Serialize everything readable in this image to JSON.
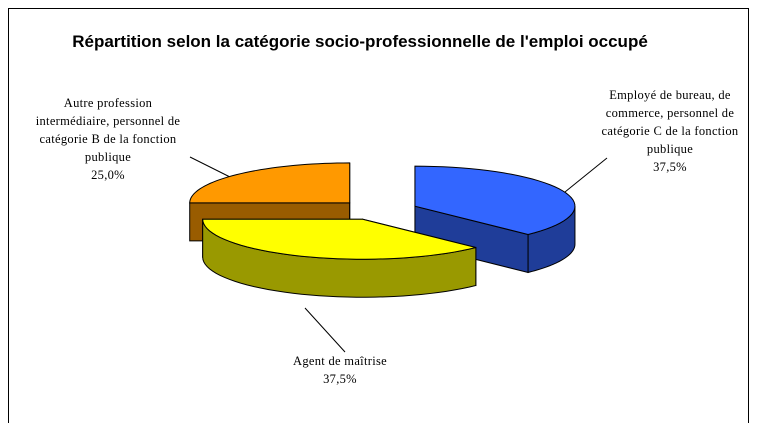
{
  "chart_data": {
    "type": "pie",
    "title": "Répartition selon la catégorie socio-professionnelle de l'emploi occupé",
    "categories": [
      "Employé de bureau, de commerce, personnel de catégorie C de la fonction publique",
      "Agent de maîtrise",
      "Autre profession intermédiaire, personnel de catégorie B de la fonction publique"
    ],
    "values": [
      37.5,
      37.5,
      25.0
    ],
    "value_labels": [
      "37,5%",
      "37,5%",
      "25,0%"
    ],
    "colors": [
      "#3366ff",
      "#ffff00",
      "#ff9900"
    ]
  }
}
